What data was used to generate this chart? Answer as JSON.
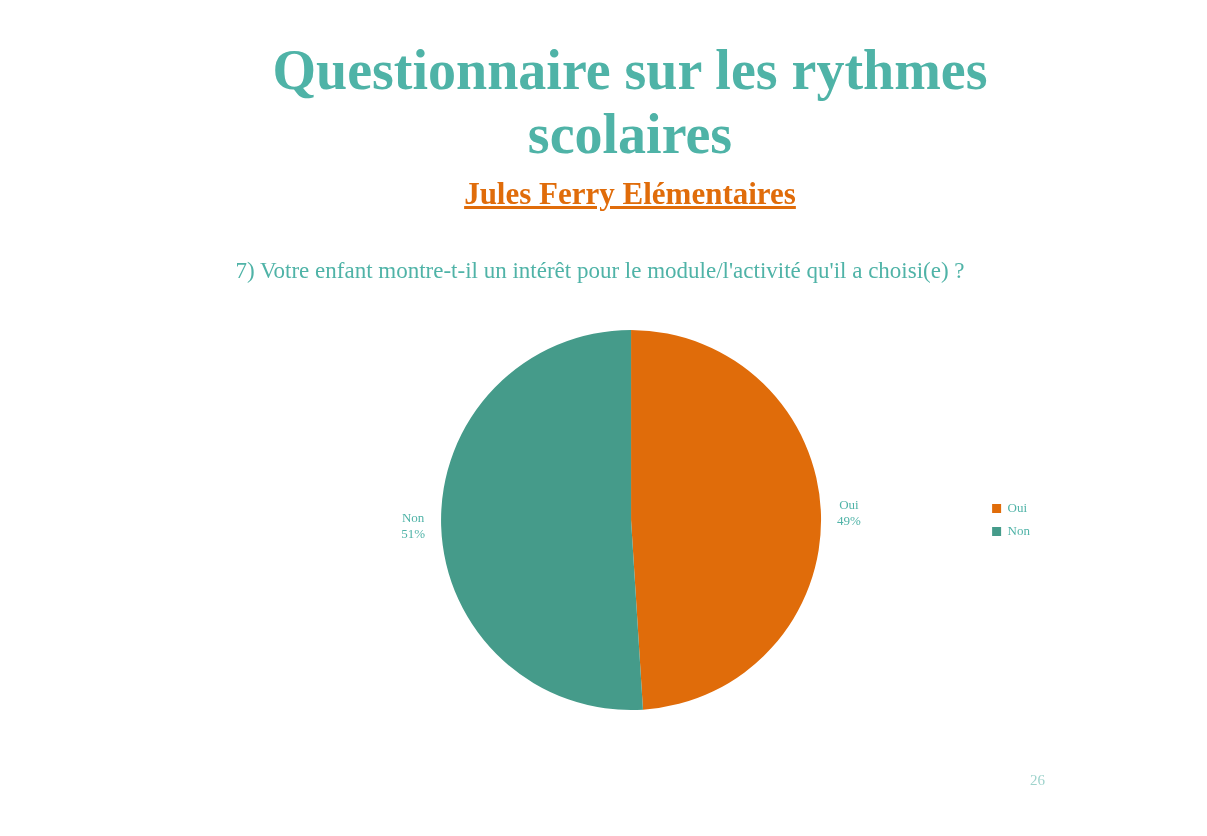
{
  "chart_data": {
    "type": "pie",
    "title": "Questionnaire sur les rythmes scolaires",
    "subtitle": "Jules Ferry Elémentaires",
    "categories": [
      "Oui",
      "Non"
    ],
    "values": [
      49,
      51
    ],
    "colors": [
      "#e06c0a",
      "#459b8a"
    ],
    "value_labels": [
      "49%",
      "51%"
    ],
    "legend": "right",
    "annotations": [
      "7) Votre enfant montre-t-il un intérêt pour le module/l'activité qu'il a choisi(e) ?",
      "26"
    ]
  }
}
